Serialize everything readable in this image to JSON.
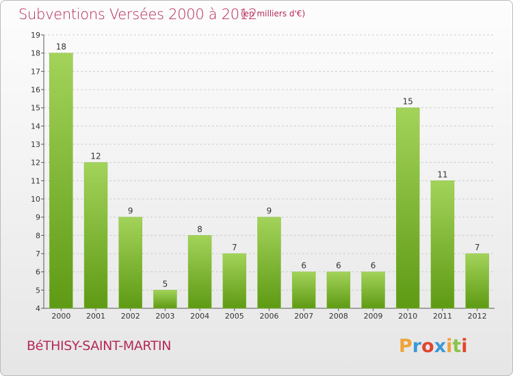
{
  "title": "Subventions Versées 2000 à 2012",
  "unit_note": "(en milliers d'€)",
  "commune": "BéTHISY-SAINT-MARTIN",
  "logo": {
    "text": "Proxiti",
    "letter_colors": [
      "#f0a33a",
      "#3c9ad6",
      "#e0442d",
      "#3c9ad6",
      "#f0a33a",
      "#8ac44a",
      "#e0442d"
    ]
  },
  "colors": {
    "title": "#b4285a",
    "bar_light": "#a3d35a",
    "bar_dark": "#5e9a14",
    "grid": "#cccccc"
  },
  "chart_data": {
    "type": "bar",
    "title": "Subventions Versées 2000 à 2012",
    "subtitle": "(en milliers d'€)",
    "xlabel": "",
    "ylabel": "",
    "categories": [
      "2000",
      "2001",
      "2002",
      "2003",
      "2004",
      "2005",
      "2006",
      "2007",
      "2008",
      "2009",
      "2010",
      "2011",
      "2012"
    ],
    "values": [
      18,
      12,
      9,
      5,
      8,
      7,
      9,
      6,
      6,
      6,
      15,
      11,
      7
    ],
    "ylim": [
      4,
      19
    ],
    "yticks": [
      4,
      5,
      6,
      7,
      8,
      9,
      10,
      11,
      12,
      13,
      14,
      15,
      16,
      17,
      18,
      19
    ],
    "grid": true,
    "legend": "none"
  }
}
